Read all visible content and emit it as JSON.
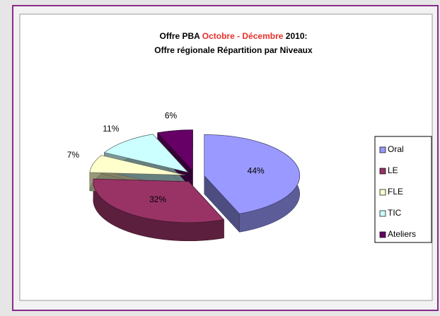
{
  "chart_data": {
    "type": "pie",
    "title_parts": [
      {
        "text": "Offre PBA",
        "color": "#000000"
      },
      {
        "text": "Octobre - Décembre",
        "color": "#e8302a"
      },
      {
        "text": "2010:",
        "color": "#000000"
      }
    ],
    "subtitle": "Offre régionale Répartition par Niveaux",
    "categories": [
      "Oral",
      "LE",
      "FLE",
      "TIC",
      "Ateliers"
    ],
    "values": [
      44,
      32,
      7,
      11,
      6
    ],
    "value_labels": [
      "44%",
      "32%",
      "7%",
      "11%",
      "6%"
    ],
    "colors": [
      "#9999ff",
      "#993366",
      "#ffffcc",
      "#ccffff",
      "#660066"
    ],
    "legend": "right"
  }
}
